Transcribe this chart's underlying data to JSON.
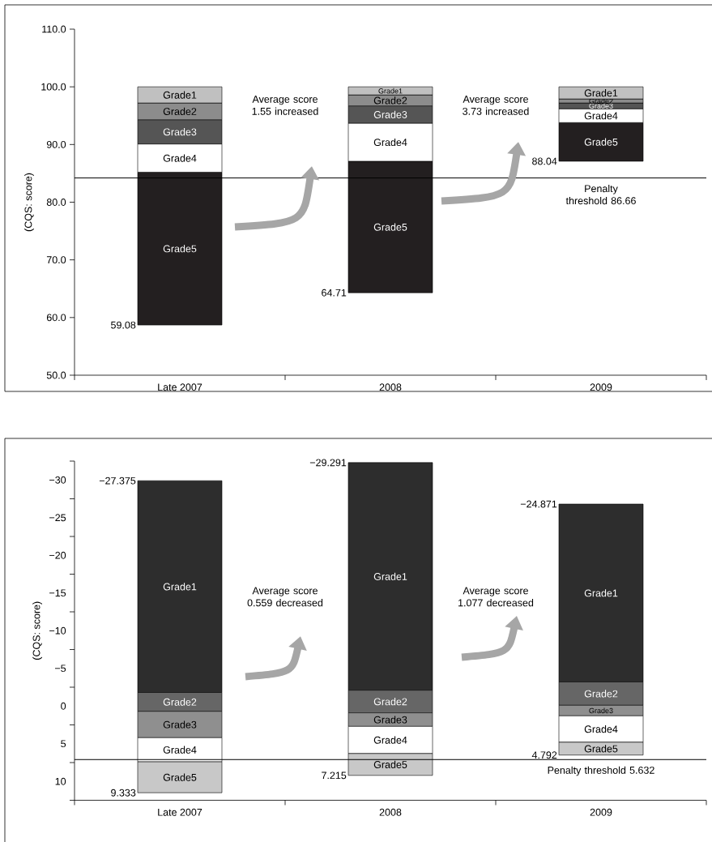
{
  "chart_data": [
    {
      "type": "bar",
      "categories": [
        "Late 2007",
        "2008",
        "2009"
      ],
      "series": [
        {
          "name": "Grade5",
          "color": "#231f20",
          "base": [
            58.7,
            64.3,
            87.1
          ],
          "values": [
            26.5,
            22.8,
            6.7
          ]
        },
        {
          "name": "Grade4",
          "color": "#ffffff",
          "base": [
            85.2,
            87.1,
            93.8
          ],
          "values": [
            4.9,
            6.6,
            2.4
          ]
        },
        {
          "name": "Grade3",
          "color": "#555555",
          "base": [
            90.1,
            93.7,
            96.2
          ],
          "values": [
            4.2,
            3.0,
            1.0
          ]
        },
        {
          "name": "Grade2",
          "color": "#8c8c8c",
          "base": [
            94.3,
            96.7,
            97.2
          ],
          "values": [
            2.9,
            1.9,
            0.7
          ]
        },
        {
          "name": "Grade1",
          "color": "#c0c0c0",
          "base": [
            97.2,
            98.6,
            97.9
          ],
          "values": [
            2.8,
            1.4,
            2.1
          ]
        }
      ],
      "ylabel": "(CQS: score)",
      "ylim": [
        50,
        110
      ],
      "yticks": [
        {
          "value": 50,
          "label": "50.0"
        },
        {
          "value": 60,
          "label": "60.0"
        },
        {
          "value": 70,
          "label": "70.0"
        },
        {
          "value": 80,
          "label": "80.0"
        },
        {
          "value": 90,
          "label": "90.0"
        },
        {
          "value": 100,
          "label": "100.0"
        },
        {
          "value": 110,
          "label": "110.0"
        }
      ],
      "ref_lines": [
        {
          "axis": "y",
          "value": 84.2,
          "label": "Penalty threshold 86.66",
          "color": "#000000"
        }
      ],
      "annotations": [
        "59.08",
        "64.71",
        "88.04",
        "Average score 1.55 increased",
        "Average score 3.73 increased"
      ],
      "grid": false
    },
    {
      "type": "bar",
      "categories": [
        "Late 2007",
        "2008",
        "2009"
      ],
      "series": [
        {
          "name": "Grade1",
          "color": "#2d2d2d",
          "base": [
            -29.9,
            -32.3,
            -26.8
          ],
          "values": [
            28.1,
            30.2,
            23.6
          ]
        },
        {
          "name": "Grade2",
          "color": "#666666",
          "base": [
            -1.8,
            -2.1,
            -3.2
          ],
          "values": [
            2.5,
            3.0,
            3.1
          ]
        },
        {
          "name": "Grade3",
          "color": "#8f8f8f",
          "base": [
            0.7,
            0.9,
            -0.1
          ],
          "values": [
            3.5,
            1.8,
            1.4
          ]
        },
        {
          "name": "Grade4",
          "color": "#ffffff",
          "base": [
            4.2,
            2.7,
            1.3
          ],
          "values": [
            3.2,
            3.6,
            3.5
          ]
        },
        {
          "name": "Grade5",
          "color": "#c8c8c8",
          "base": [
            7.4,
            6.3,
            4.8
          ],
          "values": [
            4.1,
            2.9,
            1.7
          ]
        }
      ],
      "ylabel": "(CQS: score)",
      "ylim": [
        12.5,
        -32.5
      ],
      "yticks": [
        {
          "value": -32.5,
          "label": null
        },
        {
          "value": -30,
          "label": "−30"
        },
        {
          "value": -27.5,
          "label": null
        },
        {
          "value": -25,
          "label": "−25"
        },
        {
          "value": -22.5,
          "label": null
        },
        {
          "value": -20,
          "label": "−20"
        },
        {
          "value": -17.5,
          "label": null
        },
        {
          "value": -15,
          "label": "−15"
        },
        {
          "value": -12.5,
          "label": null
        },
        {
          "value": -10,
          "label": "−10"
        },
        {
          "value": -7.5,
          "label": null
        },
        {
          "value": -5,
          "label": "−5"
        },
        {
          "value": -2.5,
          "label": null
        },
        0,
        {
          "value": 2.5,
          "label": null
        },
        5,
        {
          "value": 7.5,
          "label": null
        },
        10,
        {
          "value": 12.5,
          "label": null
        }
      ],
      "ref_lines": [
        {
          "axis": "y",
          "value": 7.1,
          "label": "Penalty threshold 5.632",
          "color": "#000000"
        }
      ],
      "annotations": [
        "−27.375",
        "9.333",
        "−29.291",
        "7.215",
        "−24.871",
        "4.792",
        "Average score 0.559 decreased",
        "Average score 1.077 decreased"
      ],
      "grid": false
    }
  ]
}
